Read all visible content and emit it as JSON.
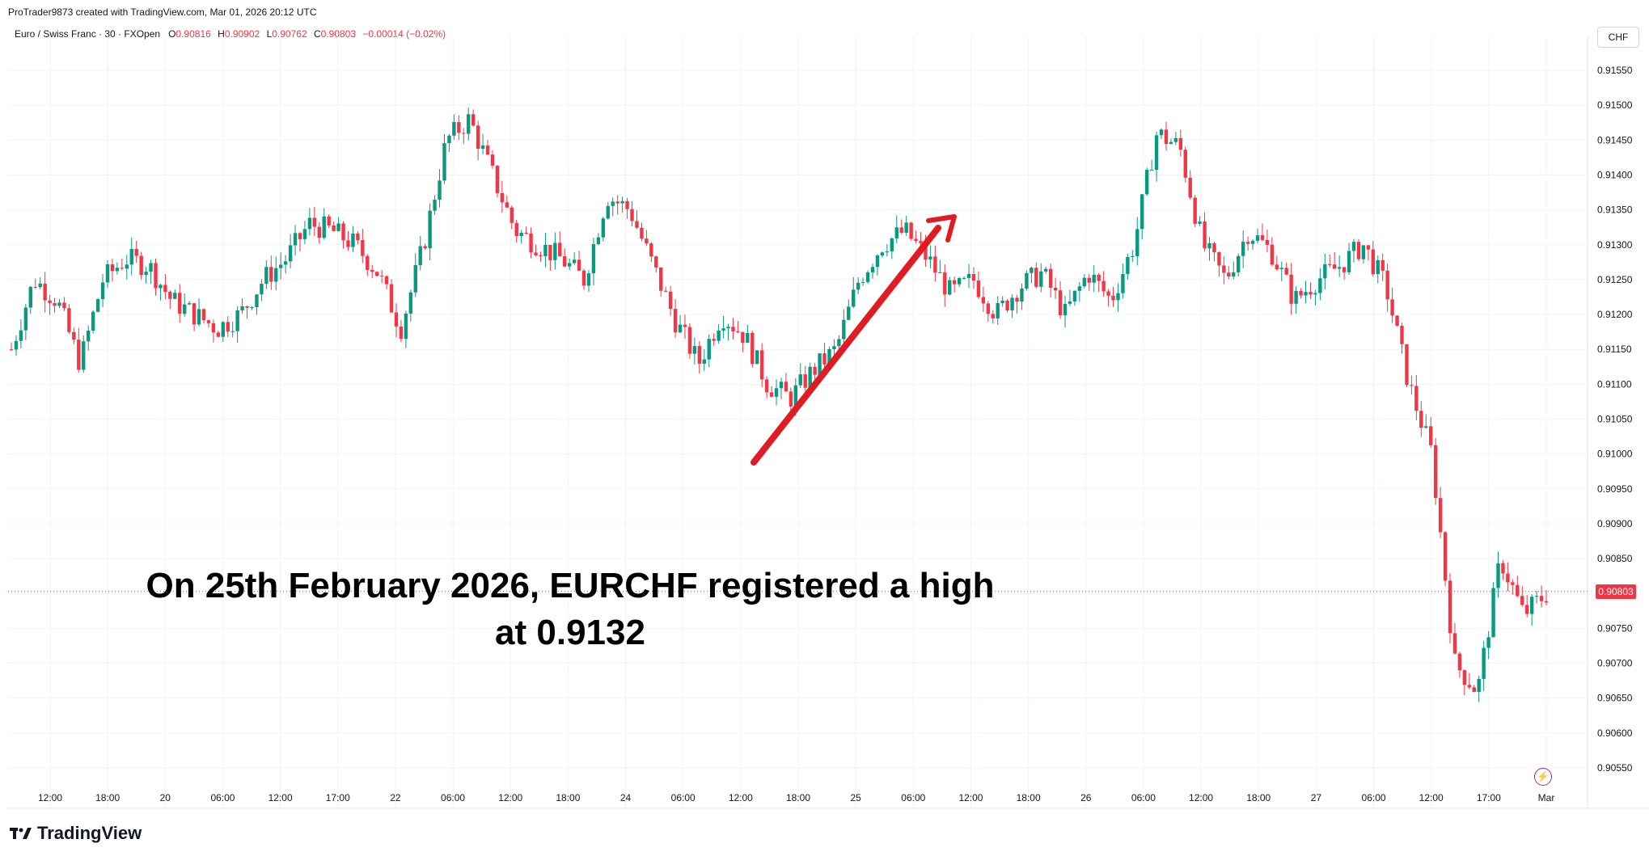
{
  "header": {
    "credit": "ProTrader9873 created with TradingView.com, Mar 01, 2026 20:12 UTC",
    "symbol": "Euro / Swiss Franc · 30 · FXOpen",
    "ohlc": {
      "o_label": "O",
      "o": "0.90816",
      "h_label": "H",
      "h": "0.90902",
      "l_label": "L",
      "l": "0.90762",
      "c_label": "C",
      "c": "0.90803",
      "change": "−0.00014 (−0.02%)"
    },
    "currency": "CHF"
  },
  "annotation": {
    "line1": "On 25th February 2026, EURCHF registered a high",
    "line2": "at 0.9132"
  },
  "last_price": "0.90803",
  "footer": {
    "logo_text": "TradingView"
  },
  "colors": {
    "up": "#089981",
    "down": "#f23645",
    "arrow": "#e01b22",
    "grid": "#f0f3fa"
  },
  "chart_data": {
    "type": "candlestick",
    "title": "",
    "ylim": [
      0.9052,
      0.9159
    ],
    "y_ticks": [
      "0.91550",
      "0.91500",
      "0.91450",
      "0.91400",
      "0.91350",
      "0.91300",
      "0.91250",
      "0.91200",
      "0.91150",
      "0.91100",
      "0.91050",
      "0.91000",
      "0.90950",
      "0.90900",
      "0.90850",
      "0.90800",
      "0.90750",
      "0.90700",
      "0.90650",
      "0.90600",
      "0.90550"
    ],
    "x_ticks": [
      "12:00",
      "18:00",
      "20",
      "06:00",
      "12:00",
      "17:00",
      "22",
      "06:00",
      "12:00",
      "18:00",
      "24",
      "06:00",
      "12:00",
      "18:00",
      "25",
      "06:00",
      "12:00",
      "18:00",
      "26",
      "06:00",
      "12:00",
      "18:00",
      "27",
      "06:00",
      "12:00",
      "17:00",
      "Mar"
    ],
    "grid": true,
    "last_price": 0.90803,
    "price_path": [
      0.9115,
      0.9125,
      0.9122,
      0.9113,
      0.9125,
      0.9128,
      0.9127,
      0.9122,
      0.912,
      0.9118,
      0.912,
      0.9125,
      0.9128,
      0.9133,
      0.9132,
      0.913,
      0.9126,
      0.9118,
      0.913,
      0.9145,
      0.9148,
      0.914,
      0.9132,
      0.913,
      0.9128,
      0.9125,
      0.9137,
      0.9135,
      0.9127,
      0.9119,
      0.9113,
      0.912,
      0.9117,
      0.911,
      0.9108,
      0.9112,
      0.9115,
      0.9125,
      0.913,
      0.9132,
      0.9128,
      0.9123,
      0.9125,
      0.912,
      0.9124,
      0.9126,
      0.912,
      0.9126,
      0.9122,
      0.913,
      0.9146,
      0.9144,
      0.913,
      0.9125,
      0.9132,
      0.9129,
      0.9122,
      0.9125,
      0.9127,
      0.913,
      0.9124,
      0.911,
      0.91,
      0.907,
      0.9066,
      0.9085,
      0.9077,
      0.908
    ]
  }
}
